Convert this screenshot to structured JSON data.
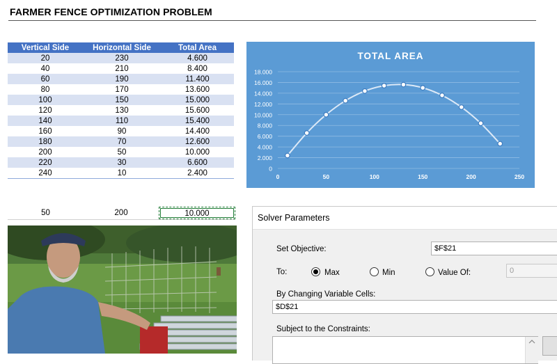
{
  "sheet": {
    "title": "FARMER FENCE OPTIMIZATION PROBLEM",
    "table": {
      "headers": [
        "Vertical Side",
        "Horizontal Side",
        "Total Area"
      ],
      "rows": [
        [
          "20",
          "230",
          "4.600"
        ],
        [
          "40",
          "210",
          "8.400"
        ],
        [
          "60",
          "190",
          "11.400"
        ],
        [
          "80",
          "170",
          "13.600"
        ],
        [
          "100",
          "150",
          "15.000"
        ],
        [
          "120",
          "130",
          "15.600"
        ],
        [
          "140",
          "110",
          "15.400"
        ],
        [
          "160",
          "90",
          "14.400"
        ],
        [
          "180",
          "70",
          "12.600"
        ],
        [
          "200",
          "50",
          "10.000"
        ],
        [
          "220",
          "30",
          "6.600"
        ],
        [
          "240",
          "10",
          "2.400"
        ]
      ]
    },
    "inputs": {
      "vertical": "50",
      "horizontal": "200",
      "area": "10.000"
    }
  },
  "chart_data": {
    "type": "scatter",
    "title": "TOTAL AREA",
    "xlabel": "",
    "ylabel": "",
    "x": [
      10,
      30,
      50,
      70,
      90,
      110,
      130,
      150,
      170,
      190,
      210,
      230
    ],
    "y": [
      2400,
      6600,
      10000,
      12600,
      14400,
      15400,
      15600,
      15000,
      13600,
      11400,
      8400,
      4600
    ],
    "xlim": [
      0,
      250
    ],
    "ylim": [
      0,
      18000
    ],
    "xticks": [
      "0",
      "50",
      "100",
      "150",
      "200",
      "250"
    ],
    "yticks": [
      "0",
      "2.000",
      "4.000",
      "6.000",
      "8.000",
      "10.000",
      "12.000",
      "14.000",
      "16.000",
      "18.000"
    ],
    "grid": true,
    "smooth_line": true,
    "colors": {
      "background": "#5b9bd5",
      "line": "#dce9f7",
      "marker_fill": "#ffffff",
      "text": "#ffffff"
    }
  },
  "solver": {
    "title": "Solver Parameters",
    "set_objective_label": "Set Objective:",
    "objective_value": "$F$21",
    "to_label": "To:",
    "max_label": "Max",
    "min_label": "Min",
    "value_of_label": "Value Of:",
    "value_of_value": "0",
    "selected": "Max",
    "changing_label": "By Changing Variable Cells:",
    "changing_value": "$D$21",
    "constraints_label": "Subject to the Constraints:"
  },
  "colors": {
    "header_blue": "#4472c4",
    "band": "#d9e1f2"
  }
}
